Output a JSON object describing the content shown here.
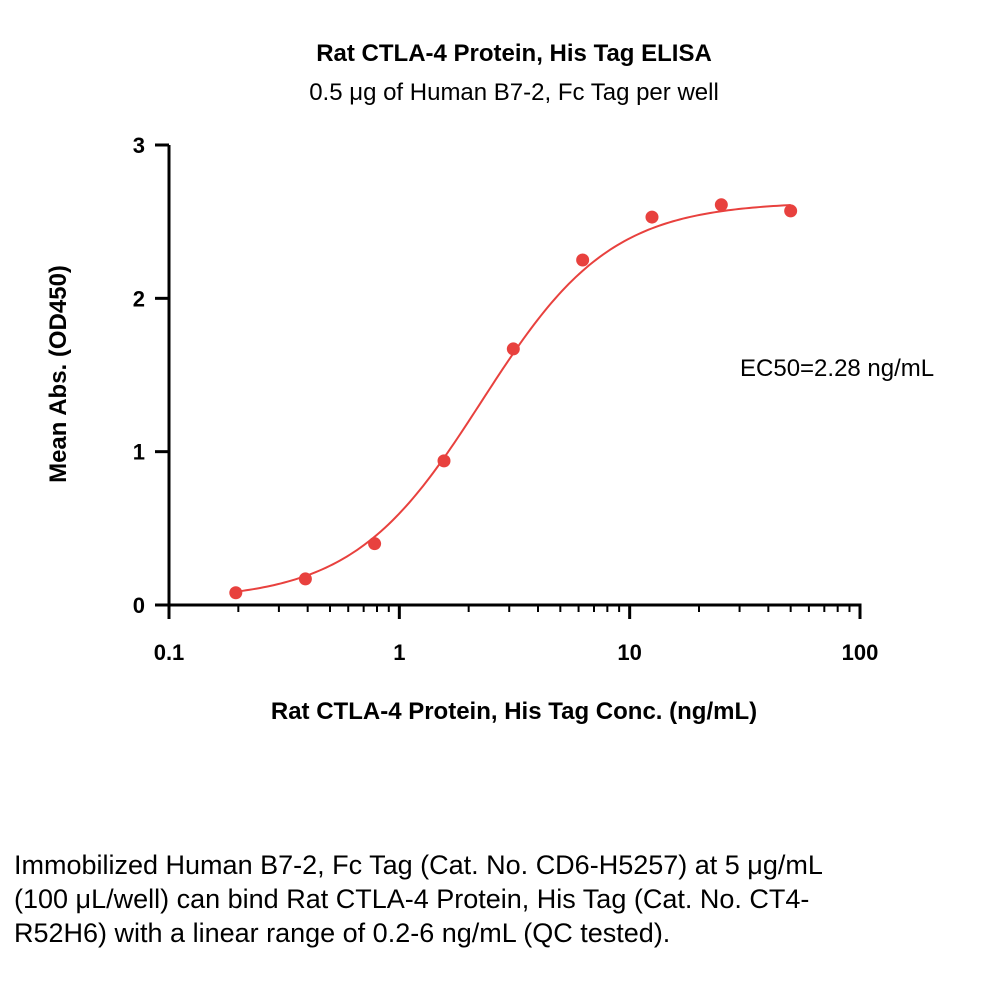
{
  "chart_data": {
    "type": "scatter",
    "title": "Rat CTLA-4 Protein, His Tag ELISA",
    "subtitle": "0.5 μg of Human B7-2, Fc Tag per well",
    "xlabel": "Rat CTLA-4 Protein, His Tag Conc. (ng/mL)",
    "ylabel": "Mean Abs. (OD450)",
    "xscale": "log",
    "xlim": [
      0.1,
      100
    ],
    "ylim": [
      0,
      3
    ],
    "x_ticks": [
      "0.1",
      "1",
      "10",
      "100"
    ],
    "y_ticks": [
      "0",
      "1",
      "2",
      "3"
    ],
    "grid": false,
    "series": [
      {
        "color": "#e8413e",
        "x": [
          0.195,
          0.391,
          0.781,
          1.563,
          3.125,
          6.25,
          12.5,
          25,
          50
        ],
        "y": [
          0.08,
          0.17,
          0.4,
          0.94,
          1.67,
          2.25,
          2.53,
          2.61,
          2.57
        ]
      }
    ],
    "fit": {
      "model": "4PL",
      "bottom": 0.03,
      "top": 2.63,
      "ec50": 2.28,
      "hill": 1.55
    },
    "annotation": "EC50=2.28 ng/mL"
  },
  "caption": "Immobilized Human B7-2, Fc Tag (Cat. No. CD6-H5257) at 5 μg/mL (100 μL/well) can bind Rat CTLA-4 Protein, His Tag (Cat. No. CT4-R52H6) with a linear range of 0.2-6 ng/mL (QC tested)."
}
